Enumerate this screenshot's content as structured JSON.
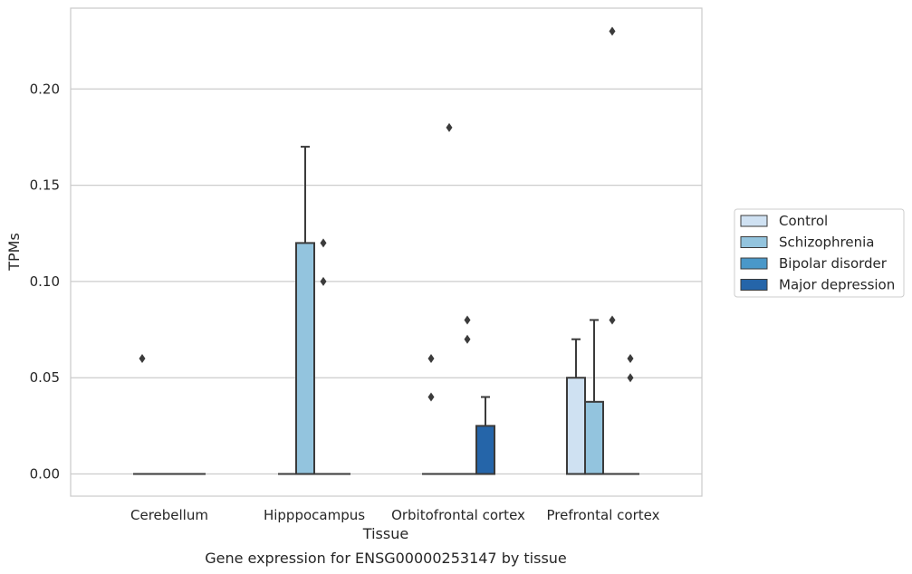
{
  "chart_data": {
    "type": "box",
    "title": "",
    "caption": "Gene expression for ENSG00000253147 by tissue",
    "xlabel": "Tissue",
    "ylabel": "TPMs",
    "ylim": [
      -0.0115,
      0.242
    ],
    "y_ticks": [
      "0.00",
      "0.05",
      "0.10",
      "0.15",
      "0.20"
    ],
    "y_tick_values": [
      0,
      0.05,
      0.1,
      0.15,
      0.2
    ],
    "grid": true,
    "legend_position": "right",
    "categories": [
      "Cerebellum",
      "Hipppocampus",
      "Orbitofrontal cortex",
      "Prefrontal cortex"
    ],
    "series": [
      {
        "name": "Control",
        "color": "#cfe1f2",
        "boxes": [
          {
            "q1": 0,
            "median": 0,
            "q3": 0,
            "whisker_low": 0,
            "whisker_high": 0,
            "outliers": [
              0.06
            ]
          },
          {
            "q1": 0,
            "median": 0,
            "q3": 0,
            "whisker_low": 0,
            "whisker_high": 0,
            "outliers": []
          },
          {
            "q1": 0,
            "median": 0,
            "q3": 0,
            "whisker_low": 0,
            "whisker_high": 0,
            "outliers": [
              0.04,
              0.06
            ]
          },
          {
            "q1": 0,
            "median": 0,
            "q3": 0.05,
            "whisker_low": 0,
            "whisker_high": 0.07,
            "outliers": []
          }
        ]
      },
      {
        "name": "Schizophrenia",
        "color": "#93c4de",
        "boxes": [
          {
            "q1": 0,
            "median": 0,
            "q3": 0,
            "whisker_low": 0,
            "whisker_high": 0,
            "outliers": []
          },
          {
            "q1": 0,
            "median": 0,
            "q3": 0.12,
            "whisker_low": 0,
            "whisker_high": 0.17,
            "outliers": []
          },
          {
            "q1": 0,
            "median": 0,
            "q3": 0,
            "whisker_low": 0,
            "whisker_high": 0,
            "outliers": [
              0.18
            ]
          },
          {
            "q1": 0,
            "median": 0,
            "q3": 0.0375,
            "whisker_low": 0,
            "whisker_high": 0.08,
            "outliers": []
          }
        ]
      },
      {
        "name": "Bipolar disorder",
        "color": "#4a98c9",
        "boxes": [
          {
            "q1": 0,
            "median": 0,
            "q3": 0,
            "whisker_low": 0,
            "whisker_high": 0,
            "outliers": []
          },
          {
            "q1": 0,
            "median": 0,
            "q3": 0,
            "whisker_low": 0,
            "whisker_high": 0,
            "outliers": [
              0.12,
              0.1
            ]
          },
          {
            "q1": 0,
            "median": 0,
            "q3": 0,
            "whisker_low": 0,
            "whisker_high": 0,
            "outliers": [
              0.07,
              0.08
            ]
          },
          {
            "q1": 0,
            "median": 0,
            "q3": 0,
            "whisker_low": 0,
            "whisker_high": 0,
            "outliers": [
              0.08,
              0.23
            ]
          }
        ]
      },
      {
        "name": "Major depression",
        "color": "#2565a9",
        "boxes": [
          {
            "q1": 0,
            "median": 0,
            "q3": 0,
            "whisker_low": 0,
            "whisker_high": 0,
            "outliers": []
          },
          {
            "q1": 0,
            "median": 0,
            "q3": 0,
            "whisker_low": 0,
            "whisker_high": 0,
            "outliers": []
          },
          {
            "q1": 0,
            "median": 0,
            "q3": 0.025,
            "whisker_low": 0,
            "whisker_high": 0.04,
            "outliers": []
          },
          {
            "q1": 0,
            "median": 0,
            "q3": 0,
            "whisker_low": 0,
            "whisker_high": 0,
            "outliers": [
              0.05,
              0.06
            ]
          }
        ]
      }
    ]
  }
}
